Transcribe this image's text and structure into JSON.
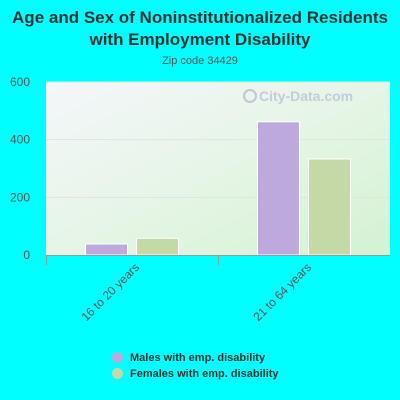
{
  "chart_data": {
    "type": "bar",
    "title": "Age and Sex of Noninstitutionalized Residents with Employment Disability",
    "subtitle": "Zip code 34429",
    "watermark": "City-Data.com",
    "categories": [
      "16 to 20 years",
      "21 to 64 years"
    ],
    "series": [
      {
        "name": "Males with emp. disability",
        "values": [
          38,
          462
        ],
        "color": "#bea9dc"
      },
      {
        "name": "Females with emp. disability",
        "values": [
          58,
          333
        ],
        "color": "#c5d9a6"
      }
    ],
    "ylim": [
      0,
      600
    ],
    "yticks": [
      "0",
      "200",
      "400",
      "600"
    ],
    "grid": true,
    "legend": "bottom",
    "colors": {
      "background": "#00FFFF"
    }
  }
}
